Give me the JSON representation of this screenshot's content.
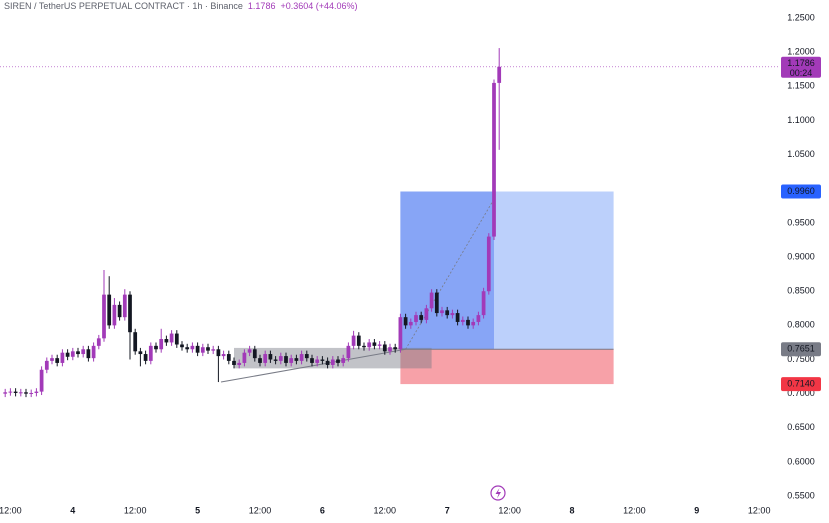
{
  "chart_data": {
    "type": "candlestick",
    "title": "SIREN / TetherUS PERPETUAL CONTRACT · 1h · Binance",
    "change": "+0.3604 (+44.06%)",
    "last_price": 1.1786,
    "countdown": "00:24",
    "colors": {
      "up": "#a23ab8",
      "down": "#131722"
    },
    "x": [
      -13,
      -12,
      -11,
      -10,
      -9,
      -8,
      -7,
      -6,
      -5,
      -4,
      -3,
      -2,
      -1,
      0,
      1,
      2,
      3,
      4,
      5,
      6,
      7,
      8,
      9,
      10,
      11,
      12,
      13,
      14,
      15,
      16,
      17,
      18,
      19,
      20,
      21,
      22,
      23,
      24,
      25,
      26,
      27,
      28,
      29,
      30,
      31,
      32,
      33,
      34,
      35,
      36,
      37,
      38,
      39,
      40,
      41,
      42,
      43,
      44,
      45,
      46,
      47,
      48,
      49,
      50,
      51,
      52,
      53,
      54,
      55,
      56,
      57,
      58,
      59,
      60,
      61,
      62,
      63,
      64,
      65,
      66,
      67,
      68,
      69,
      70,
      71,
      72,
      73,
      74,
      75,
      76,
      77,
      78,
      79,
      80,
      81,
      82
    ],
    "open": [
      0.7,
      0.702,
      0.703,
      0.701,
      0.702,
      0.7,
      0.701,
      0.703,
      0.735,
      0.748,
      0.752,
      0.745,
      0.76,
      0.754,
      0.762,
      0.758,
      0.765,
      0.752,
      0.77,
      0.781,
      0.845,
      0.8,
      0.83,
      0.812,
      0.845,
      0.79,
      0.762,
      0.758,
      0.748,
      0.77,
      0.765,
      0.78,
      0.775,
      0.788,
      0.772,
      0.768,
      0.765,
      0.77,
      0.76,
      0.768,
      0.763,
      0.765,
      0.755,
      0.758,
      0.748,
      0.742,
      0.745,
      0.76,
      0.765,
      0.752,
      0.745,
      0.758,
      0.75,
      0.748,
      0.755,
      0.745,
      0.752,
      0.748,
      0.758,
      0.752,
      0.745,
      0.75,
      0.748,
      0.742,
      0.75,
      0.745,
      0.752,
      0.77,
      0.785,
      0.77,
      0.768,
      0.775,
      0.77,
      0.772,
      0.762,
      0.768,
      0.765,
      0.812,
      0.8,
      0.805,
      0.815,
      0.808,
      0.825,
      0.848,
      0.818,
      0.822,
      0.815,
      0.818,
      0.805,
      0.808,
      0.8,
      0.805,
      0.815,
      0.85,
      0.93,
      1.155
    ],
    "high": [
      0.707,
      0.708,
      0.708,
      0.707,
      0.707,
      0.706,
      0.708,
      0.74,
      0.753,
      0.757,
      0.757,
      0.765,
      0.765,
      0.767,
      0.767,
      0.77,
      0.77,
      0.775,
      0.786,
      0.881,
      0.872,
      0.84,
      0.835,
      0.853,
      0.85,
      0.795,
      0.767,
      0.763,
      0.775,
      0.775,
      0.795,
      0.785,
      0.793,
      0.793,
      0.777,
      0.773,
      0.775,
      0.775,
      0.773,
      0.773,
      0.77,
      0.77,
      0.763,
      0.763,
      0.753,
      0.75,
      0.765,
      0.77,
      0.77,
      0.757,
      0.763,
      0.763,
      0.755,
      0.76,
      0.76,
      0.757,
      0.757,
      0.763,
      0.763,
      0.757,
      0.755,
      0.755,
      0.753,
      0.755,
      0.755,
      0.757,
      0.775,
      0.792,
      0.79,
      0.775,
      0.78,
      0.78,
      0.777,
      0.777,
      0.773,
      0.773,
      0.817,
      0.817,
      0.81,
      0.82,
      0.82,
      0.83,
      0.853,
      0.853,
      0.827,
      0.827,
      0.823,
      0.823,
      0.813,
      0.813,
      0.81,
      0.82,
      0.855,
      0.935,
      1.16,
      1.206
    ],
    "low": [
      0.695,
      0.697,
      0.696,
      0.696,
      0.695,
      0.695,
      0.696,
      0.698,
      0.73,
      0.743,
      0.74,
      0.74,
      0.749,
      0.749,
      0.753,
      0.753,
      0.747,
      0.747,
      0.765,
      0.776,
      0.795,
      0.795,
      0.807,
      0.807,
      0.75,
      0.757,
      0.74,
      0.743,
      0.743,
      0.76,
      0.76,
      0.77,
      0.77,
      0.767,
      0.763,
      0.76,
      0.76,
      0.755,
      0.755,
      0.758,
      0.758,
      0.717,
      0.75,
      0.743,
      0.737,
      0.737,
      0.74,
      0.755,
      0.747,
      0.74,
      0.74,
      0.745,
      0.743,
      0.743,
      0.74,
      0.74,
      0.743,
      0.743,
      0.747,
      0.74,
      0.74,
      0.743,
      0.737,
      0.737,
      0.74,
      0.74,
      0.747,
      0.765,
      0.765,
      0.763,
      0.763,
      0.765,
      0.765,
      0.757,
      0.757,
      0.76,
      0.76,
      0.795,
      0.795,
      0.8,
      0.803,
      0.803,
      0.82,
      0.813,
      0.813,
      0.81,
      0.81,
      0.8,
      0.8,
      0.795,
      0.795,
      0.8,
      0.81,
      0.845,
      0.925,
      1.057
    ],
    "close": [
      0.702,
      0.703,
      0.701,
      0.702,
      0.7,
      0.701,
      0.703,
      0.735,
      0.748,
      0.752,
      0.745,
      0.76,
      0.754,
      0.762,
      0.758,
      0.765,
      0.752,
      0.77,
      0.781,
      0.845,
      0.8,
      0.83,
      0.812,
      0.845,
      0.79,
      0.762,
      0.758,
      0.748,
      0.77,
      0.765,
      0.78,
      0.775,
      0.788,
      0.772,
      0.768,
      0.765,
      0.77,
      0.76,
      0.768,
      0.763,
      0.765,
      0.755,
      0.758,
      0.748,
      0.742,
      0.745,
      0.76,
      0.765,
      0.752,
      0.745,
      0.758,
      0.75,
      0.748,
      0.755,
      0.745,
      0.752,
      0.748,
      0.758,
      0.752,
      0.745,
      0.75,
      0.748,
      0.742,
      0.75,
      0.745,
      0.752,
      0.77,
      0.785,
      0.77,
      0.768,
      0.775,
      0.77,
      0.772,
      0.762,
      0.768,
      0.765,
      0.812,
      0.8,
      0.805,
      0.815,
      0.808,
      0.825,
      0.848,
      0.818,
      0.822,
      0.815,
      0.818,
      0.805,
      0.808,
      0.8,
      0.805,
      0.815,
      0.85,
      0.93,
      1.155,
      1.1786
    ],
    "xlim": [
      -14,
      136
    ],
    "ylim": [
      0.5443,
      1.2764
    ],
    "xticks": [
      {
        "value": -12,
        "label": "12:00"
      },
      {
        "value": 0,
        "label": "4"
      },
      {
        "value": 12,
        "label": "12:00"
      },
      {
        "value": 24,
        "label": "5"
      },
      {
        "value": 36,
        "label": "12:00"
      },
      {
        "value": 48,
        "label": "6"
      },
      {
        "value": 60,
        "label": "12:00"
      },
      {
        "value": 72,
        "label": "7"
      },
      {
        "value": 84,
        "label": "12:00"
      },
      {
        "value": 96,
        "label": "8"
      },
      {
        "value": 108,
        "label": "12:00"
      },
      {
        "value": 120,
        "label": "9"
      },
      {
        "value": 132,
        "label": "12:00"
      }
    ],
    "yticks": [
      {
        "value": 1.25,
        "label": "1.2500"
      },
      {
        "value": 1.2,
        "label": "1.2000"
      },
      {
        "value": 1.15,
        "label": "1.1500"
      },
      {
        "value": 1.1,
        "label": "1.1000"
      },
      {
        "value": 1.05,
        "label": "1.0500"
      },
      {
        "value": 1.0,
        "label": "1.0000"
      },
      {
        "value": 0.95,
        "label": "0.9500"
      },
      {
        "value": 0.9,
        "label": "0.9000"
      },
      {
        "value": 0.85,
        "label": "0.8500"
      },
      {
        "value": 0.8,
        "label": "0.8000"
      },
      {
        "value": 0.75,
        "label": "0.7500"
      },
      {
        "value": 0.7,
        "label": "0.7000"
      },
      {
        "value": 0.65,
        "label": "0.6500"
      },
      {
        "value": 0.6,
        "label": "0.6000"
      },
      {
        "value": 0.55,
        "label": "0.5500"
      }
    ],
    "position": {
      "x_start": 63,
      "x_end": 104,
      "x_now": 81,
      "entry": 0.7651,
      "target": {
        "value": 0.996,
        "label": "0.9960"
      },
      "stop": {
        "value": 0.714,
        "label": "0.7140"
      }
    },
    "range_box": {
      "x": [
        31,
        69
      ],
      "y": [
        0.737,
        0.767
      ]
    },
    "trend_line": {
      "x": [
        28.5,
        64
      ],
      "y": [
        0.717,
        0.765
      ]
    },
    "path_line": {
      "x": [
        64,
        81
      ],
      "y": [
        0.765,
        0.985
      ]
    }
  }
}
